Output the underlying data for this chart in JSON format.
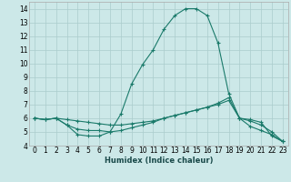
{
  "xlabel": "Humidex (Indice chaleur)",
  "xlim": [
    -0.5,
    23.5
  ],
  "ylim": [
    4,
    14.5
  ],
  "xticks": [
    0,
    1,
    2,
    3,
    4,
    5,
    6,
    7,
    8,
    9,
    10,
    11,
    12,
    13,
    14,
    15,
    16,
    17,
    18,
    19,
    20,
    21,
    22,
    23
  ],
  "yticks": [
    4,
    5,
    6,
    7,
    8,
    9,
    10,
    11,
    12,
    13,
    14
  ],
  "background_color": "#cce8e8",
  "grid_color": "#aacccc",
  "line_color": "#1a7a6a",
  "line1_x": [
    0,
    1,
    2,
    3,
    4,
    5,
    6,
    7,
    8,
    9,
    10,
    11,
    12,
    13,
    14,
    15,
    16,
    17,
    18,
    19,
    20,
    21,
    22,
    23
  ],
  "line1_y": [
    6.0,
    5.9,
    6.0,
    5.5,
    4.8,
    4.7,
    4.7,
    5.0,
    6.3,
    8.5,
    9.9,
    11.0,
    12.5,
    13.5,
    14.0,
    14.0,
    13.5,
    11.5,
    7.8,
    6.0,
    5.9,
    5.7,
    4.7,
    4.3
  ],
  "line2_x": [
    0,
    1,
    2,
    3,
    4,
    5,
    6,
    7,
    8,
    9,
    10,
    11,
    12,
    13,
    14,
    15,
    16,
    17,
    18,
    19,
    20,
    21,
    22,
    23
  ],
  "line2_y": [
    6.0,
    5.9,
    6.0,
    5.9,
    5.8,
    5.7,
    5.6,
    5.5,
    5.5,
    5.6,
    5.7,
    5.8,
    6.0,
    6.2,
    6.4,
    6.6,
    6.8,
    7.0,
    7.3,
    6.0,
    5.8,
    5.5,
    5.0,
    4.3
  ],
  "line3_x": [
    0,
    1,
    2,
    3,
    4,
    5,
    6,
    7,
    8,
    9,
    10,
    11,
    12,
    13,
    14,
    15,
    16,
    17,
    18,
    19,
    20,
    21,
    22,
    23
  ],
  "line3_y": [
    6.0,
    5.9,
    6.0,
    5.5,
    5.2,
    5.1,
    5.1,
    5.0,
    5.1,
    5.3,
    5.5,
    5.7,
    6.0,
    6.2,
    6.4,
    6.6,
    6.8,
    7.1,
    7.5,
    6.0,
    5.4,
    5.1,
    4.8,
    4.3
  ]
}
